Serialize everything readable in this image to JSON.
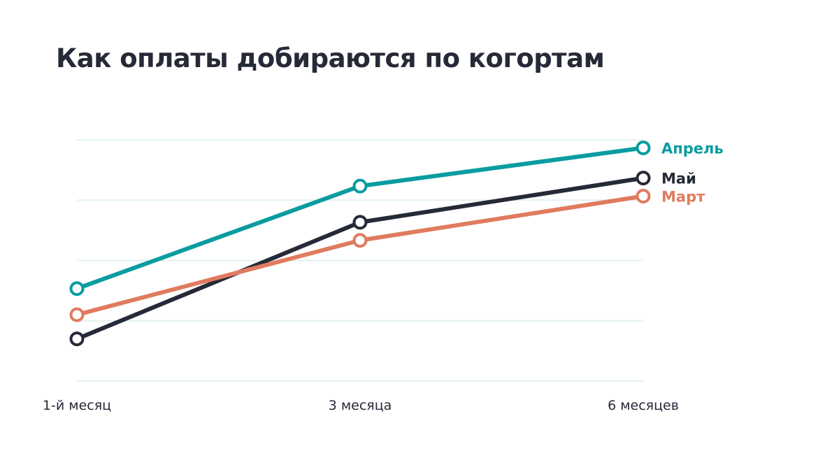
{
  "chart_data": {
    "type": "line",
    "title": "Как оплаты добираются по когортам",
    "categories": [
      "1-й месяц",
      "3 месяца",
      "6 месяцев"
    ],
    "series": [
      {
        "name": "Апрель",
        "values": [
          63,
          88.5,
          98
        ],
        "color": "#0a9ca0"
      },
      {
        "name": "Май",
        "values": [
          50.5,
          79.5,
          90.5
        ],
        "color": "#262a38"
      },
      {
        "name": "Март",
        "values": [
          56.5,
          75,
          86
        ],
        "color": "#e07b5f"
      }
    ],
    "ylim": [
      0,
      100
    ],
    "grid": true,
    "legend": "right, at line ends"
  }
}
